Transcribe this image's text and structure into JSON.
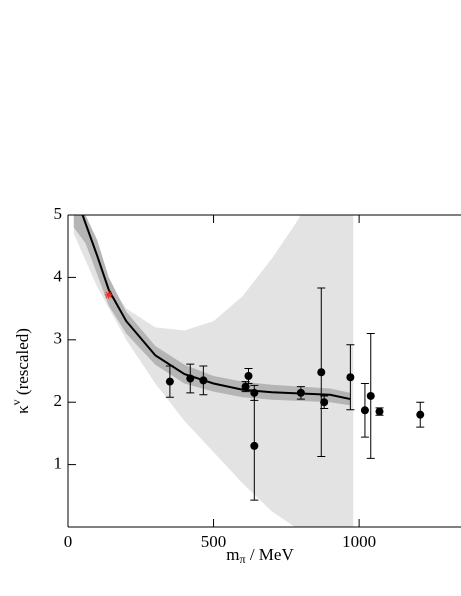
{
  "chart_data": {
    "type": "scatter",
    "x_label": "m",
    "x_label_sub": "π",
    "x_label_rest": " / MeV",
    "y_label": "κ",
    "y_label_sup": "v",
    "y_label_rest": " (rescaled)",
    "xlim": [
      0,
      1350
    ],
    "ylim": [
      0,
      5
    ],
    "xticks": [
      0,
      500,
      1000
    ],
    "yticks": [
      1,
      2,
      3,
      4,
      5
    ],
    "series": [
      {
        "kind": "band",
        "color": "#e3e3e3",
        "x": [
          20,
          100,
          200,
          300,
          400,
          500,
          600,
          700,
          780,
          800,
          900,
          980
        ],
        "upper": [
          5,
          4.2,
          3.5,
          3.2,
          3.15,
          3.3,
          3.7,
          4.3,
          4.85,
          5,
          5,
          5
        ],
        "lower": [
          4.7,
          3.85,
          3.0,
          2.3,
          1.7,
          1.2,
          0.7,
          0.25,
          0,
          0,
          0,
          0
        ]
      },
      {
        "kind": "band",
        "color": "#b5b5b5",
        "x": [
          20,
          60,
          100,
          140,
          200,
          300,
          400,
          500,
          600,
          700,
          800,
          900,
          970
        ],
        "upper": [
          5,
          5,
          4.6,
          4.0,
          3.45,
          2.9,
          2.6,
          2.42,
          2.33,
          2.28,
          2.25,
          2.22,
          2.15
        ],
        "lower": [
          4.8,
          4.55,
          4.05,
          3.55,
          3.1,
          2.6,
          2.3,
          2.17,
          2.08,
          2.04,
          2.02,
          2.0,
          1.95
        ]
      },
      {
        "kind": "line",
        "color": "#000000",
        "x": [
          50,
          100,
          140,
          200,
          300,
          400,
          500,
          600,
          700,
          800,
          900,
          970
        ],
        "values": [
          5,
          4.35,
          3.8,
          3.3,
          2.75,
          2.45,
          2.3,
          2.2,
          2.16,
          2.14,
          2.12,
          2.05
        ]
      },
      {
        "kind": "points",
        "color": "#000000",
        "x": [
          350,
          420,
          465,
          610,
          620,
          640,
          640,
          800,
          870,
          880,
          970,
          1020,
          1040,
          1070,
          1210
        ],
        "values": [
          2.33,
          2.38,
          2.35,
          2.25,
          2.42,
          2.15,
          1.3,
          2.15,
          2.48,
          2.0,
          2.4,
          1.87,
          2.1,
          1.85,
          1.8
        ],
        "errors": [
          0.25,
          0.23,
          0.23,
          0.08,
          0.12,
          0.12,
          0.87,
          0.1,
          1.35,
          0.1,
          0.52,
          0.43,
          1.0,
          0.06,
          0.2
        ]
      },
      {
        "kind": "star",
        "color": "#e8302a",
        "x": [
          140
        ],
        "values": [
          3.72
        ]
      }
    ]
  }
}
